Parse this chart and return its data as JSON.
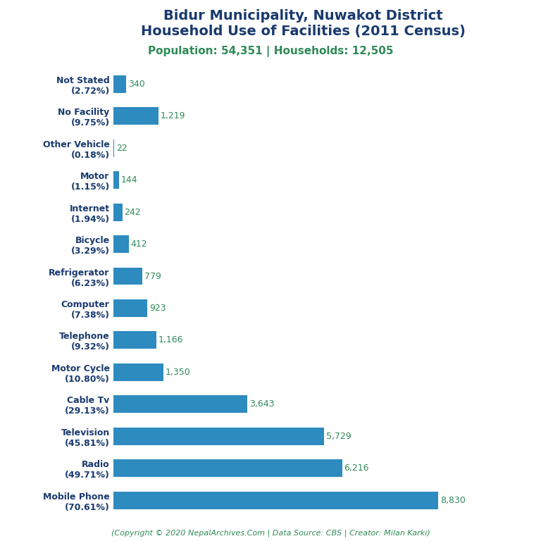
{
  "title_line1": "Bidur Municipality, Nuwakot District",
  "title_line2": "Household Use of Facilities (2011 Census)",
  "subtitle": "Population: 54,351 | Households: 12,505",
  "copyright": "(Copyright © 2020 NepalArchives.Com | Data Source: CBS | Creator: Milan Karki)",
  "categories": [
    "Mobile Phone\n(70.61%)",
    "Radio\n(49.71%)",
    "Television\n(45.81%)",
    "Cable Tv\n(29.13%)",
    "Motor Cycle\n(10.80%)",
    "Telephone\n(9.32%)",
    "Computer\n(7.38%)",
    "Refrigerator\n(6.23%)",
    "Bicycle\n(3.29%)",
    "Internet\n(1.94%)",
    "Motor\n(1.15%)",
    "Other Vehicle\n(0.18%)",
    "No Facility\n(9.75%)",
    "Not Stated\n(2.72%)"
  ],
  "values": [
    8830,
    6216,
    5729,
    3643,
    1350,
    1166,
    923,
    779,
    412,
    242,
    144,
    22,
    1219,
    340
  ],
  "bar_color": "#2e8bc0",
  "title_color": "#1a3a6e",
  "subtitle_color": "#2e8b57",
  "label_color": "#2e8b57",
  "ylabel_color": "#1a3a6e",
  "copyright_color": "#2e8b57",
  "background_color": "#ffffff",
  "title_fontsize": 14,
  "subtitle_fontsize": 11,
  "label_fontsize": 9,
  "ylabel_fontsize": 9,
  "copyright_fontsize": 8
}
